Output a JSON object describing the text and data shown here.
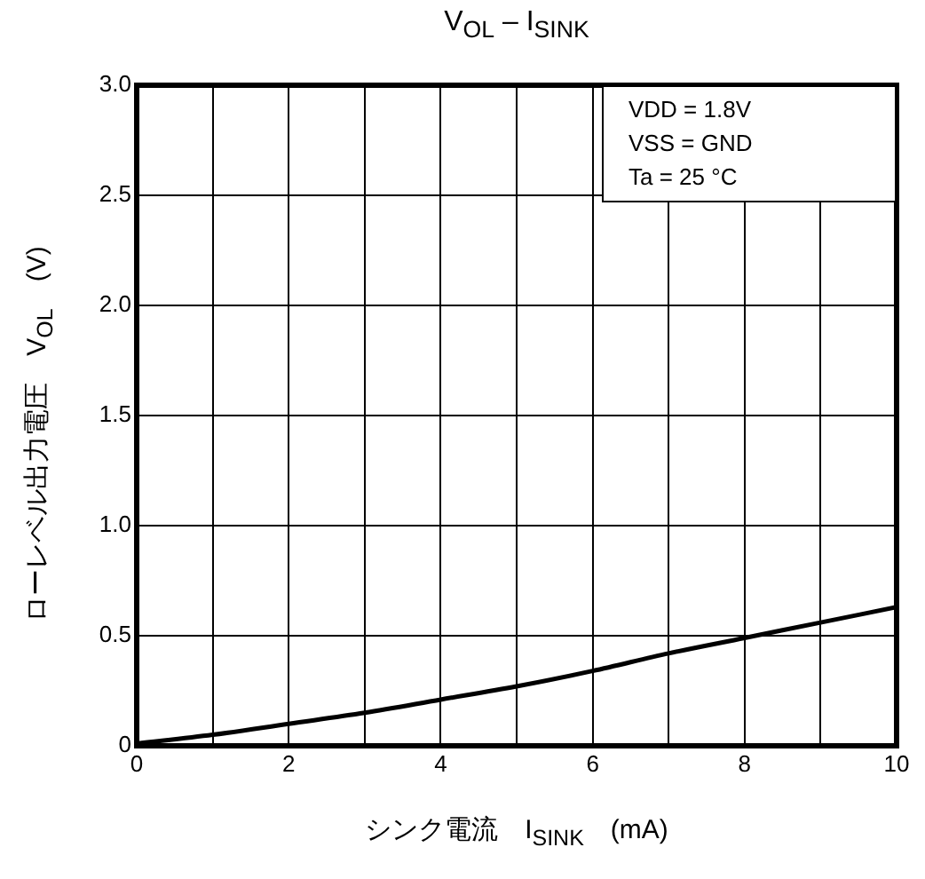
{
  "chart_data": {
    "type": "line",
    "title": "V$_{OL}$ – I$_{SINK}$",
    "xlabel": "シンク電流　I$_{SINK}$　(mA)",
    "ylabel": "ローレベル出力電圧　V$_{OL}$　(V)",
    "annotations": [
      "VDD = 1.8V",
      "VSS = GND",
      "Ta = 25 °C"
    ],
    "x": [
      0,
      1,
      2,
      3,
      4,
      5,
      6,
      7,
      8,
      9,
      10
    ],
    "series": [
      {
        "color": "#000000",
        "values": [
          0.01,
          0.05,
          0.1,
          0.15,
          0.21,
          0.27,
          0.34,
          0.42,
          0.49,
          0.56,
          0.63
        ]
      }
    ],
    "xlim": [
      0,
      10
    ],
    "xticks": [
      0,
      {
        "value": 1,
        "label": null
      },
      2,
      {
        "value": 3,
        "label": null
      },
      4,
      {
        "value": 5,
        "label": null
      },
      6,
      {
        "value": 7,
        "label": null
      },
      8,
      {
        "value": 9,
        "label": null
      },
      10
    ],
    "ylim": [
      0,
      3
    ],
    "yticks": [
      0,
      {
        "value": 0.5,
        "label": "0.5"
      },
      {
        "value": 1,
        "label": "1.0"
      },
      {
        "value": 1.5,
        "label": "1.5"
      },
      {
        "value": 2,
        "label": "2.0"
      },
      {
        "value": 2.5,
        "label": "2.5"
      },
      {
        "value": 3,
        "label": "3.0"
      }
    ],
    "grid": true,
    "legend": false,
    "marker": "none",
    "line_style": "solid"
  }
}
